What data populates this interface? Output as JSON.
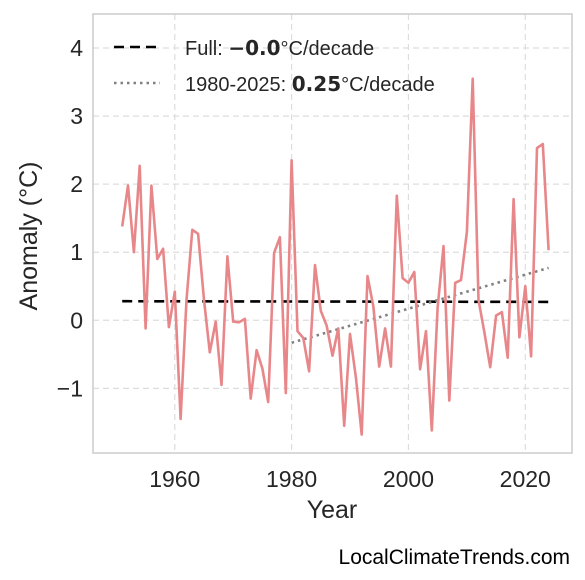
{
  "chart_data": {
    "type": "line",
    "xlabel": "Year",
    "ylabel": "Anomaly (°C)",
    "xlim": [
      1946,
      2028
    ],
    "ylim": [
      -1.95,
      4.5
    ],
    "x_ticks": [
      1960,
      1980,
      2000,
      2020
    ],
    "y_ticks": [
      -1,
      0,
      1,
      2,
      3,
      4
    ],
    "y_tick_labels": [
      "−1",
      "0",
      "1",
      "2",
      "3",
      "4"
    ],
    "grid": true,
    "legend_position": "top-left",
    "series": [
      {
        "color": "#e8878a",
        "x": [
          1951,
          1952,
          1953,
          1954,
          1955,
          1956,
          1957,
          1958,
          1959,
          1960,
          1961,
          1962,
          1963,
          1964,
          1965,
          1966,
          1967,
          1968,
          1969,
          1970,
          1971,
          1972,
          1973,
          1974,
          1975,
          1976,
          1977,
          1978,
          1979,
          1980,
          1981,
          1982,
          1983,
          1984,
          1985,
          1986,
          1987,
          1988,
          1989,
          1990,
          1991,
          1992,
          1993,
          1994,
          1995,
          1996,
          1997,
          1998,
          1999,
          2000,
          2001,
          2002,
          2003,
          2004,
          2005,
          2006,
          2007,
          2008,
          2009,
          2010,
          2011,
          2012,
          2013,
          2014,
          2015,
          2016,
          2017,
          2018,
          2019,
          2020,
          2021,
          2022,
          2023,
          2024
        ],
        "y": [
          1.38,
          1.98,
          1.0,
          2.27,
          -0.12,
          1.98,
          0.9,
          1.05,
          -0.1,
          0.42,
          -1.45,
          0.3,
          1.33,
          1.27,
          0.3,
          -0.47,
          -0.02,
          -0.95,
          0.94,
          -0.02,
          -0.03,
          0.02,
          -1.15,
          -0.44,
          -0.71,
          -1.2,
          0.99,
          1.22,
          -1.07,
          2.35,
          -0.16,
          -0.26,
          -0.75,
          0.81,
          0.14,
          -0.08,
          -0.52,
          -0.12,
          -1.55,
          -0.2,
          -0.84,
          -1.68,
          0.65,
          0.2,
          -0.68,
          -0.12,
          -0.68,
          1.83,
          0.62,
          0.55,
          0.71,
          -0.72,
          -0.16,
          -1.62,
          0.18,
          1.09,
          -1.18,
          0.55,
          0.59,
          1.3,
          3.55,
          0.3,
          -0.18,
          -0.69,
          0.07,
          0.12,
          -0.55,
          1.78,
          -0.25,
          0.5,
          -0.53,
          2.53,
          2.59,
          1.03
        ]
      }
    ],
    "trend_lines": [
      {
        "style": "dashed",
        "color": "#000000",
        "x": [
          1951,
          2024
        ],
        "y": [
          0.28,
          0.27
        ]
      },
      {
        "style": "dotted",
        "color": "#808080",
        "x": [
          1980,
          2024
        ],
        "y": [
          -0.33,
          0.77
        ]
      }
    ],
    "legend": [
      {
        "style": "dashed",
        "color": "#000000",
        "label_prefix": "Full: ",
        "label_bold": "−0.0",
        "label_suffix": "°C/decade"
      },
      {
        "style": "dotted",
        "color": "#808080",
        "label_prefix": "1980-2025: ",
        "label_bold": "0.25",
        "label_suffix": "°C/decade"
      }
    ]
  },
  "footer": {
    "text": "LocalClimateTrends.com"
  }
}
